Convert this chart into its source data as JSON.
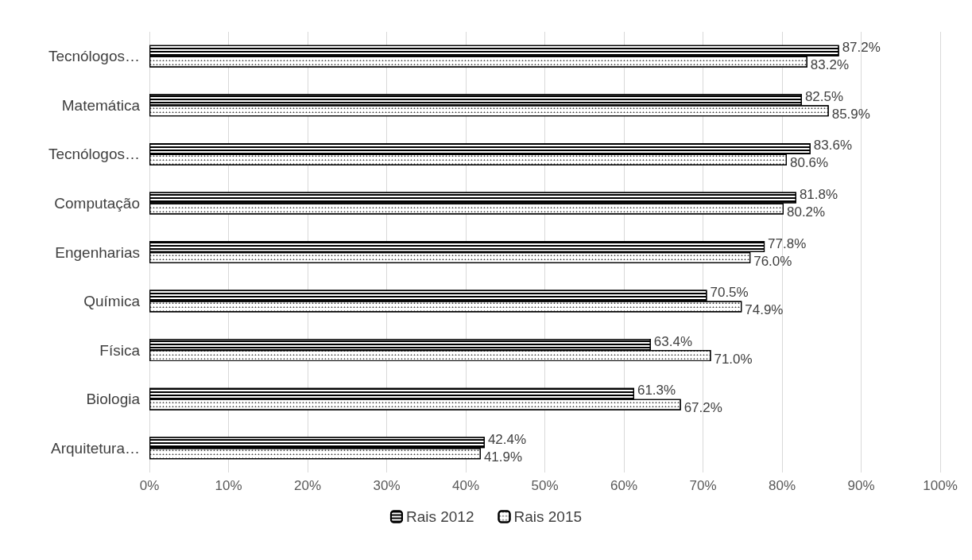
{
  "chart_data": {
    "type": "bar",
    "orientation": "horizontal",
    "categories": [
      "Tecnólogos…",
      "Matemática",
      "Tecnólogos…",
      "Computação",
      "Engenharias",
      "Química",
      "Física",
      "Biologia",
      "Arquitetura…"
    ],
    "series": [
      {
        "name": "Rais 2012",
        "color": "#000000",
        "values": [
          87.2,
          82.5,
          83.6,
          81.8,
          77.8,
          70.5,
          63.4,
          61.3,
          42.4
        ],
        "value_labels": [
          "87.2%",
          "82.5%",
          "83.6%",
          "81.8%",
          "77.8%",
          "70.5%",
          "63.4%",
          "61.3%",
          "42.4%"
        ]
      },
      {
        "name": "Rais 2015",
        "color": "#000000",
        "values": [
          83.2,
          85.9,
          80.6,
          80.2,
          76.0,
          74.9,
          71.0,
          67.2,
          41.9
        ],
        "value_labels": [
          "83.2%",
          "85.9%",
          "80.6%",
          "80.2%",
          "76.0%",
          "74.9%",
          "71.0%",
          "67.2%",
          "41.9%"
        ]
      }
    ],
    "xlim": [
      0,
      100
    ],
    "xticks": [
      {
        "value": 0,
        "label": "0%"
      },
      {
        "value": 10,
        "label": "10%"
      },
      {
        "value": 20,
        "label": "20%"
      },
      {
        "value": 30,
        "label": "30%"
      },
      {
        "value": 40,
        "label": "40%"
      },
      {
        "value": 50,
        "label": "50%"
      },
      {
        "value": 60,
        "label": "60%"
      },
      {
        "value": 70,
        "label": "70%"
      },
      {
        "value": 80,
        "label": "80%"
      },
      {
        "value": 90,
        "label": "90%"
      },
      {
        "value": 100,
        "label": "100%"
      }
    ],
    "grid": "x",
    "legend": "bottom"
  }
}
